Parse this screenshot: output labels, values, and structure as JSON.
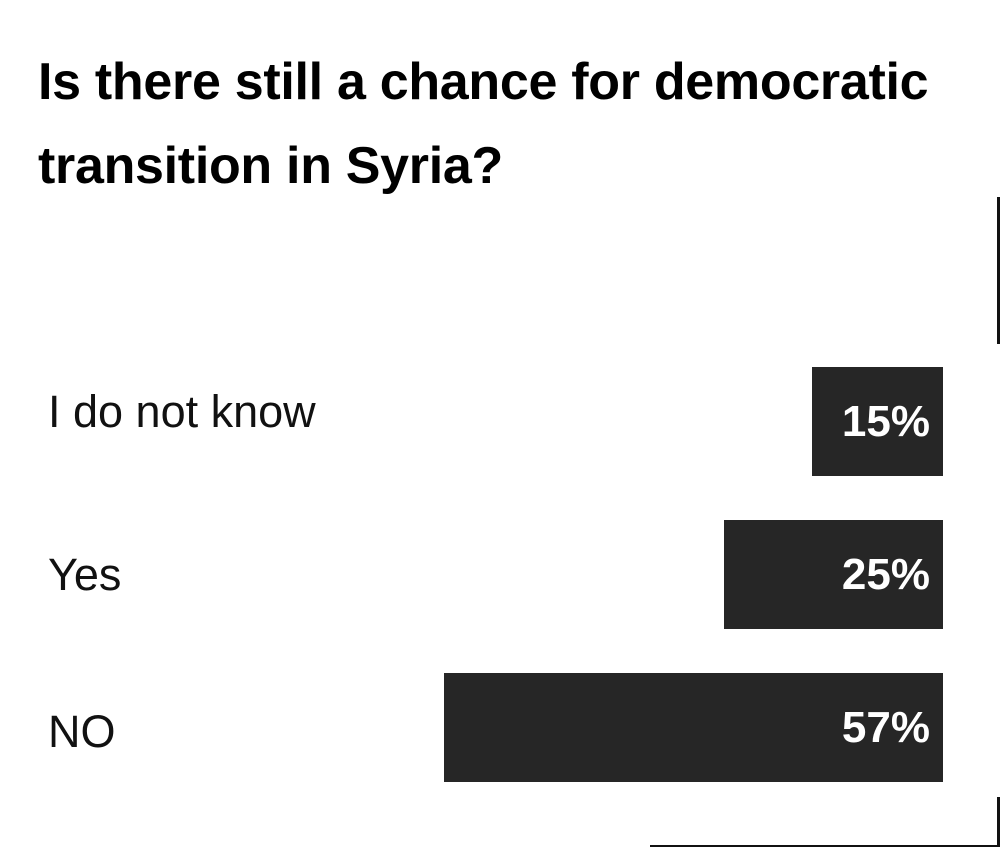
{
  "chart_data": {
    "type": "bar",
    "orientation": "horizontal",
    "title": "Is there still a chance for democratic transition in Syria?",
    "categories": [
      "I do not know",
      "Yes",
      "NO"
    ],
    "values": [
      15,
      25,
      57
    ],
    "value_labels": [
      "15%",
      "25%",
      "57%"
    ],
    "unit": "%",
    "bar_color": "#262626",
    "label_color": "#ffffff",
    "grid": false,
    "legend": "none"
  }
}
